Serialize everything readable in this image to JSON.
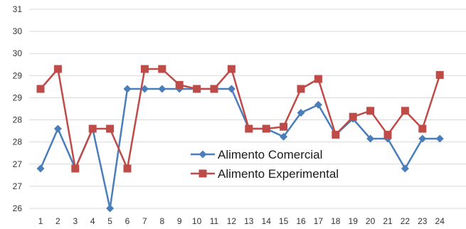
{
  "chart_data": {
    "type": "line",
    "title": "",
    "xlabel": "",
    "ylabel": "",
    "x": [
      1,
      2,
      3,
      4,
      5,
      6,
      7,
      8,
      9,
      10,
      11,
      12,
      13,
      14,
      15,
      16,
      17,
      18,
      19,
      20,
      21,
      22,
      23,
      24
    ],
    "x_tick_labels": [
      "1",
      "2",
      "3",
      "4",
      "5",
      "6",
      "7",
      "8",
      "9",
      "10",
      "11",
      "12",
      "13",
      "14",
      "15",
      "16",
      "17",
      "18",
      "19",
      "20",
      "21",
      "22",
      "23",
      "24"
    ],
    "y_tick_labels": [
      "26",
      "27",
      "27",
      "28",
      "28",
      "29",
      "29",
      "30",
      "30",
      "31"
    ],
    "ylim": [
      26,
      31
    ],
    "grid": true,
    "legend_position": "bottom-center",
    "series": [
      {
        "name": "Alimento Comercial",
        "color": "#4a7ebb",
        "marker": "diamond",
        "values": [
          27,
          28,
          27,
          28,
          26,
          29,
          29,
          29,
          29,
          29,
          29,
          29,
          28,
          28,
          27.8,
          28.4,
          28.6,
          27.85,
          28.25,
          27.75,
          27.75,
          27,
          27.75,
          27.75
        ]
      },
      {
        "name": "Alimento Experimental",
        "color": "#be4b48",
        "marker": "square",
        "values": [
          29,
          29.5,
          27,
          28,
          28,
          27,
          29.5,
          29.5,
          29.1,
          29,
          29,
          29.5,
          28,
          28,
          28.05,
          29,
          29.25,
          27.85,
          28.3,
          28.45,
          27.85,
          28.45,
          28,
          29.35
        ]
      }
    ]
  }
}
